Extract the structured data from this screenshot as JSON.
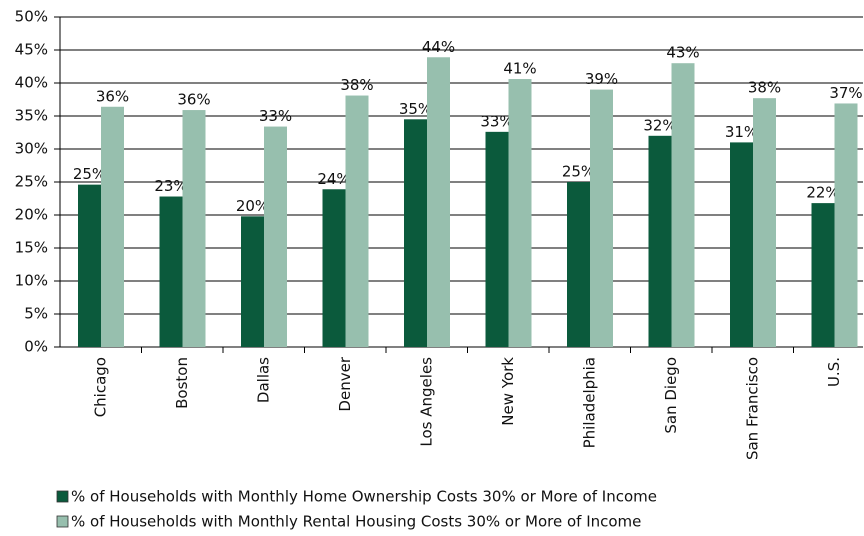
{
  "chart_data": {
    "type": "bar",
    "categories": [
      "Chicago",
      "Boston",
      "Dallas",
      "Denver",
      "Los Angeles",
      "New York",
      "Philadelphia",
      "San Diego",
      "San Francisco",
      "U.S."
    ],
    "series": [
      {
        "name": "% of Households with Monthly Home Ownership Costs 30% or More of Income",
        "color": "#0b5a3c",
        "values": [
          24.6,
          22.8,
          19.8,
          23.9,
          34.5,
          32.6,
          25,
          32,
          31,
          21.8
        ],
        "value_labels": [
          "25%",
          "23%",
          "20%",
          "24%",
          "35%",
          "33%",
          "25%",
          "32%",
          "31%",
          "22%"
        ]
      },
      {
        "name": "% of Households with Monthly Rental Housing Costs 30% or More of Income",
        "color": "#97bfae",
        "values": [
          36.4,
          35.9,
          33.4,
          38.1,
          43.9,
          40.6,
          39,
          43,
          37.7,
          36.9
        ],
        "value_labels": [
          "36%",
          "36%",
          "33%",
          "38%",
          "44%",
          "41%",
          "39%",
          "43%",
          "38%",
          "37%"
        ]
      }
    ],
    "ylim": [
      0,
      50
    ],
    "yticks": [
      {
        "value": 0,
        "label": "0%"
      },
      {
        "value": 5,
        "label": "5%"
      },
      {
        "value": 10,
        "label": "10%"
      },
      {
        "value": 15,
        "label": "15%"
      },
      {
        "value": 20,
        "label": "20%"
      },
      {
        "value": 25,
        "label": "25%"
      },
      {
        "value": 30,
        "label": "30%"
      },
      {
        "value": 35,
        "label": "35%"
      },
      {
        "value": 40,
        "label": "40%"
      },
      {
        "value": 45,
        "label": "45%"
      },
      {
        "value": 50,
        "label": "50%"
      }
    ],
    "grid": true,
    "legend": "bottom"
  }
}
